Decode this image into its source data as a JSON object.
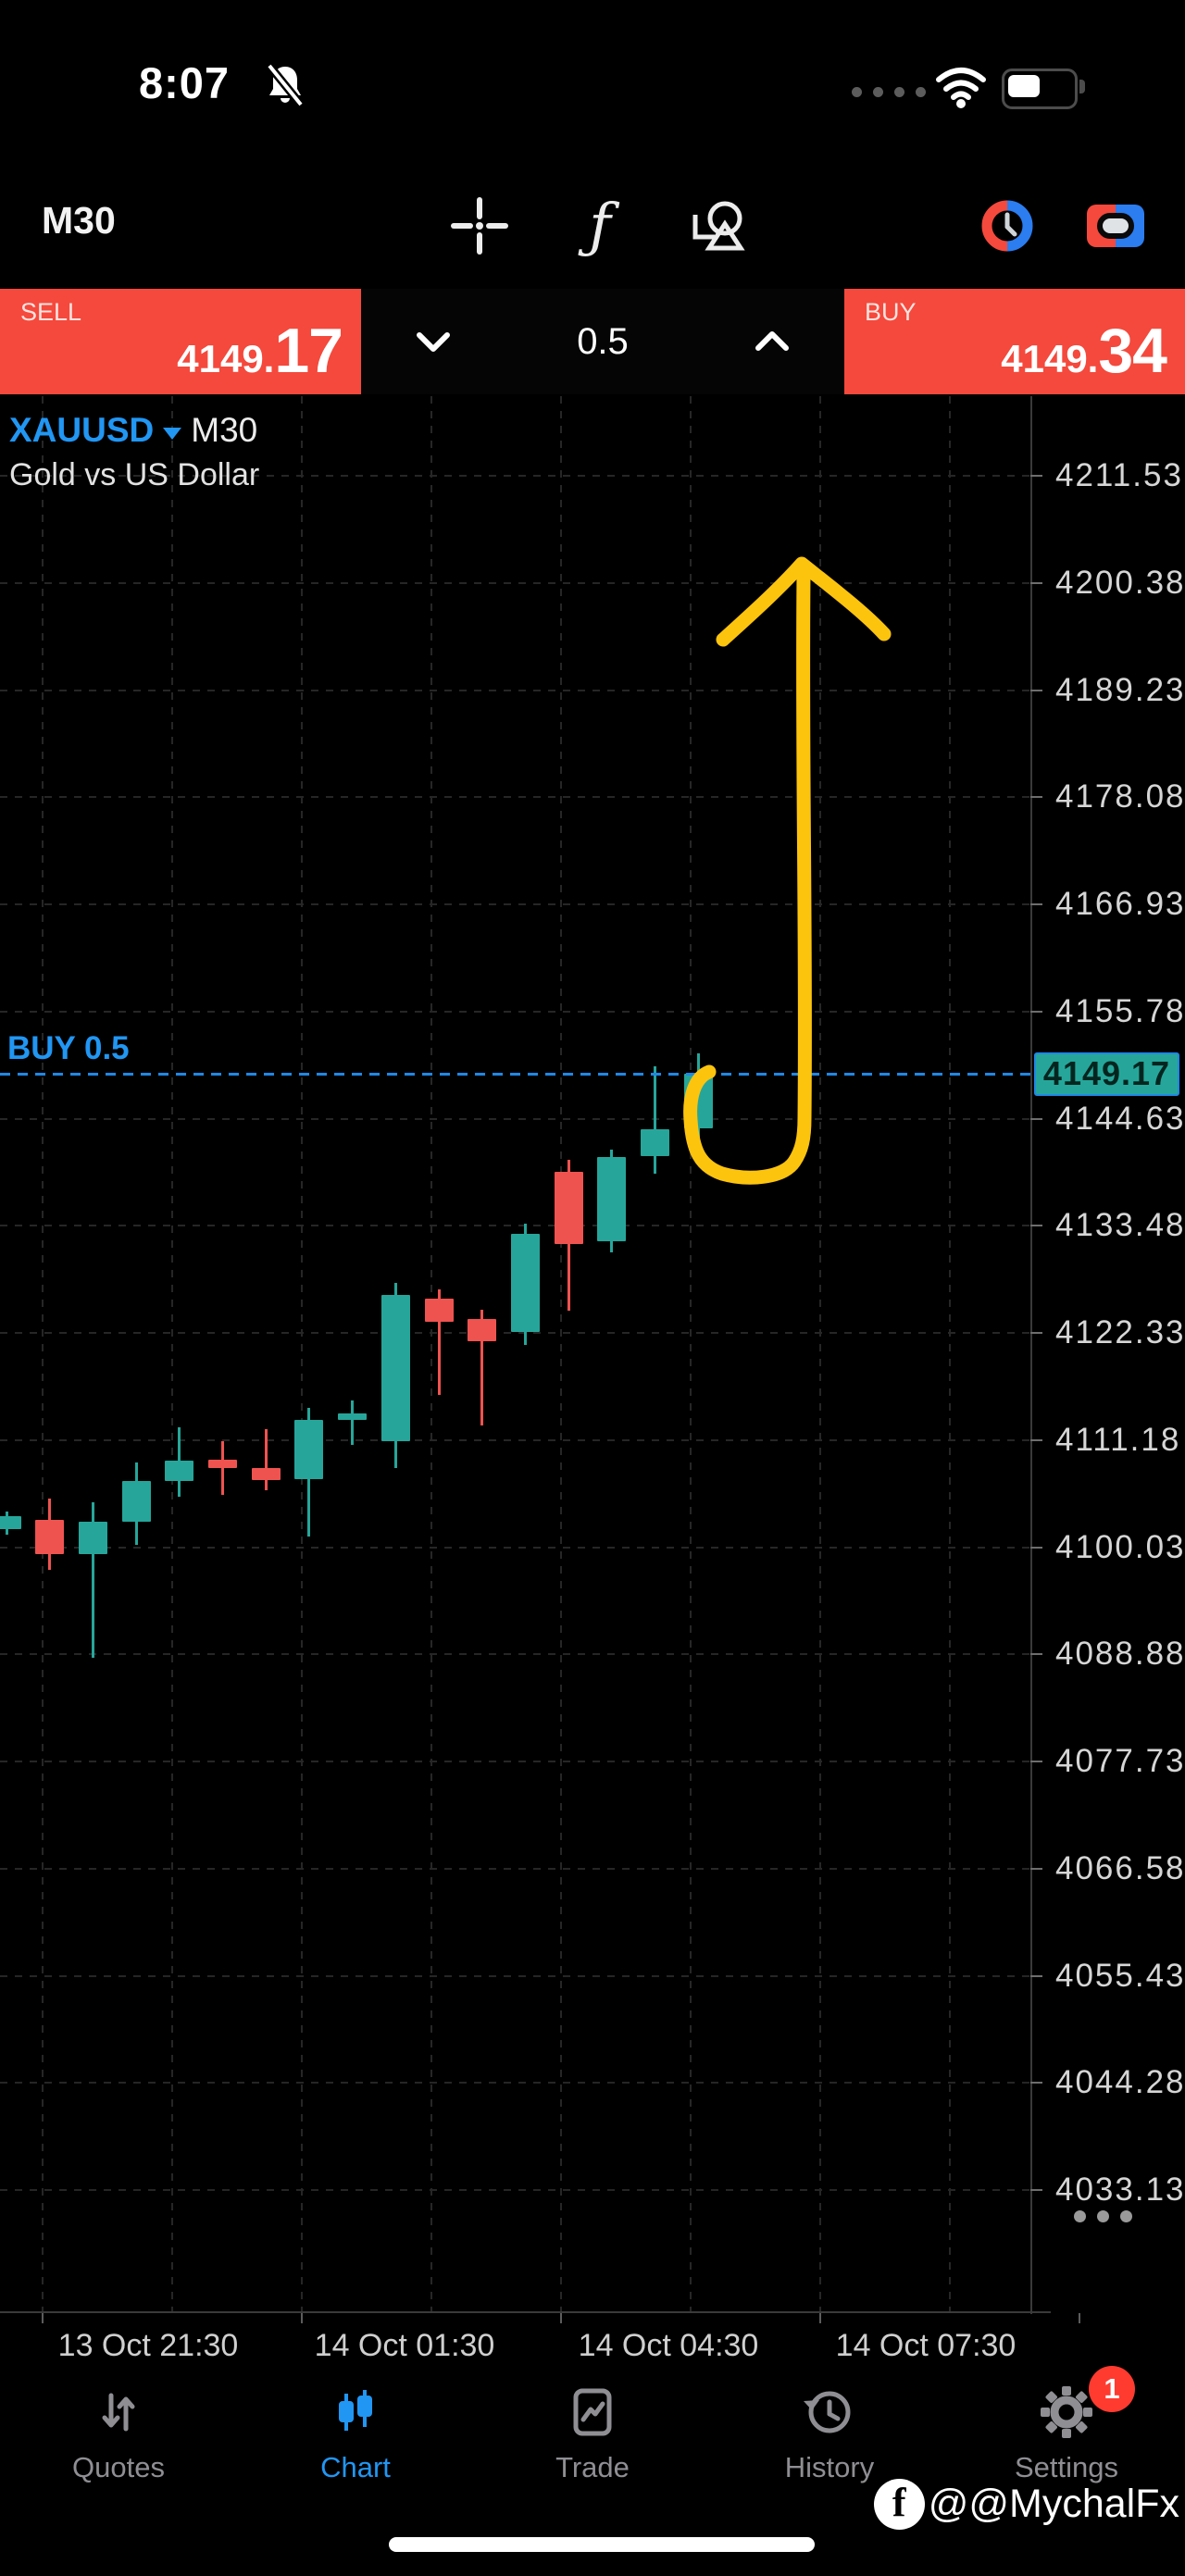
{
  "status_bar": {
    "time": "8:07"
  },
  "toolbar": {
    "timeframe": "M30"
  },
  "order_panel": {
    "sell_label": "SELL",
    "sell_price_main": "4149.",
    "sell_price_big": "17",
    "volume": "0.5",
    "buy_label": "BUY",
    "buy_price_main": "4149.",
    "buy_price_big": "34"
  },
  "chart": {
    "symbol": "XAUUSD",
    "timeframe": "M30",
    "description": "Gold vs US Dollar",
    "position_label": "BUY 0.5",
    "current_price_badge": "4149.17"
  },
  "chart_data": {
    "type": "candlestick",
    "symbol": "XAUUSD",
    "timeframe": "M30",
    "title": "Gold vs US Dollar",
    "price_axis_ticks": [
      4211.53,
      4200.38,
      4189.23,
      4178.08,
      4166.93,
      4155.78,
      4144.63,
      4133.48,
      4122.33,
      4111.18,
      4100.03,
      4088.88,
      4077.73,
      4066.58,
      4055.43,
      4044.28,
      4033.13
    ],
    "price_axis_step": 11.15,
    "time_axis_labels": [
      "13 Oct 21:30",
      "14 Oct 01:30",
      "14 Oct 04:30",
      "14 Oct 07:30"
    ],
    "bid": 4149.17,
    "ask": 4149.34,
    "order_line": {
      "side": "BUY",
      "volume": 0.5,
      "price": 4149.17
    },
    "candles": [
      {
        "o": 4101.8,
        "h": 4103.6,
        "l": 4101.2,
        "c": 4103.2
      },
      {
        "o": 4102.8,
        "h": 4105.0,
        "l": 4097.6,
        "c": 4099.2
      },
      {
        "o": 4099.2,
        "h": 4104.6,
        "l": 4088.4,
        "c": 4102.6
      },
      {
        "o": 4102.6,
        "h": 4108.7,
        "l": 4100.2,
        "c": 4106.8
      },
      {
        "o": 4106.8,
        "h": 4112.4,
        "l": 4105.2,
        "c": 4108.9
      },
      {
        "o": 4109.0,
        "h": 4111.0,
        "l": 4105.4,
        "c": 4108.2
      },
      {
        "o": 4108.2,
        "h": 4112.2,
        "l": 4105.9,
        "c": 4106.9
      },
      {
        "o": 4107.0,
        "h": 4114.4,
        "l": 4101.0,
        "c": 4113.2
      },
      {
        "o": 4113.2,
        "h": 4115.2,
        "l": 4110.6,
        "c": 4113.9
      },
      {
        "o": 4111.0,
        "h": 4127.4,
        "l": 4108.2,
        "c": 4126.2
      },
      {
        "o": 4125.8,
        "h": 4126.8,
        "l": 4115.8,
        "c": 4123.4
      },
      {
        "o": 4123.7,
        "h": 4124.6,
        "l": 4112.6,
        "c": 4121.4
      },
      {
        "o": 4122.3,
        "h": 4133.6,
        "l": 4121.0,
        "c": 4132.5
      },
      {
        "o": 4139.0,
        "h": 4140.2,
        "l": 4124.5,
        "c": 4131.5
      },
      {
        "o": 4131.8,
        "h": 4141.3,
        "l": 4130.6,
        "c": 4140.5
      },
      {
        "o": 4140.6,
        "h": 4150.0,
        "l": 4138.8,
        "c": 4143.4
      },
      {
        "o": 4143.5,
        "h": 4151.3,
        "l": 4141.8,
        "c": 4149.17
      }
    ],
    "annotation": {
      "type": "hand-drawn-arrow",
      "color": "#fdc40e",
      "description": "yellow hook curving from current candle upward into a long up arrow"
    },
    "colors": {
      "candle_up": "#26a69a",
      "candle_down": "#ef5350",
      "order_line": "#1e88e5",
      "badge_bg": "#26a69a",
      "panel_red": "#f4493c"
    }
  },
  "bottom_nav": {
    "items": [
      {
        "id": "quotes",
        "label": "Quotes"
      },
      {
        "id": "chart",
        "label": "Chart",
        "active": true
      },
      {
        "id": "trade",
        "label": "Trade"
      },
      {
        "id": "history",
        "label": "History"
      },
      {
        "id": "settings",
        "label": "Settings",
        "badge": "1"
      }
    ]
  },
  "watermark": {
    "handle": "@@MychalFx"
  }
}
